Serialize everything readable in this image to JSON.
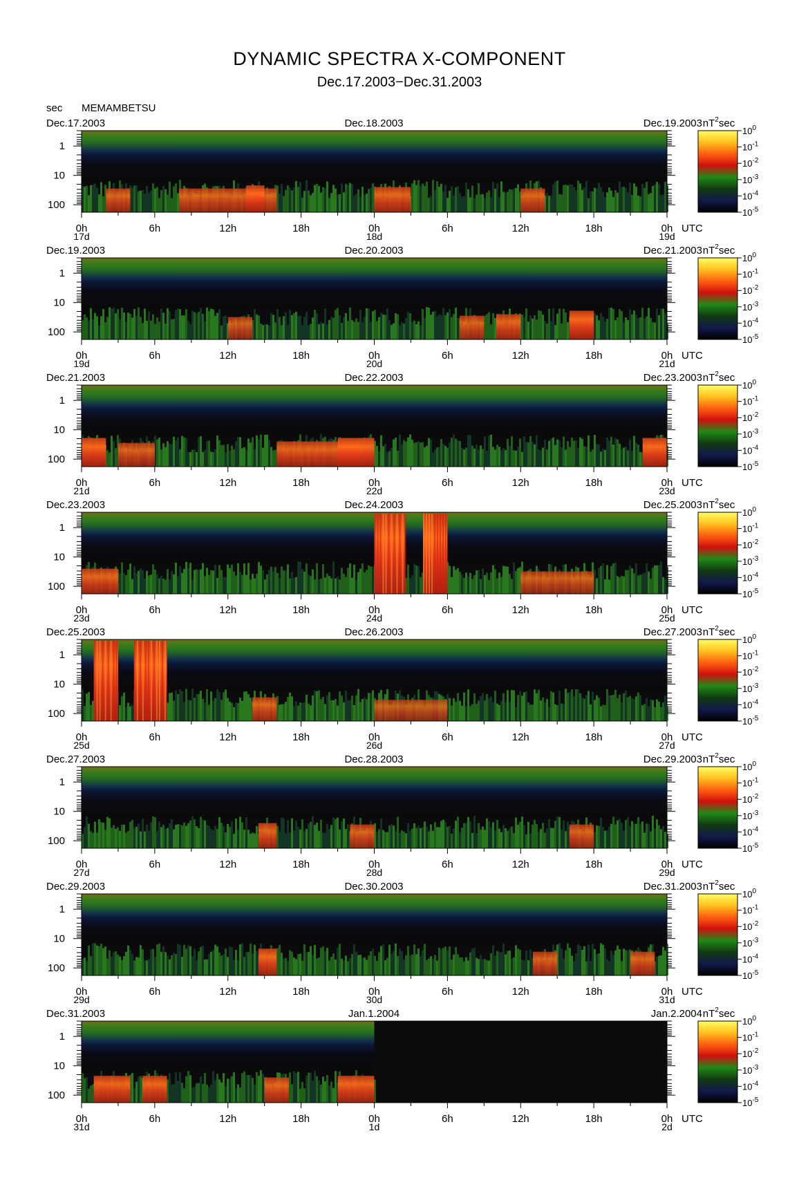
{
  "title": "DYNAMIC SPECTRA X-COMPONENT",
  "subtitle": "Dec.17.2003−Dec.31.2003",
  "y_unit_label": "sec",
  "station": "MEMAMBETSU",
  "colorbar_unit": "nT",
  "colorbar_unit_exp": "2",
  "colorbar_unit_tail": "sec",
  "utc_label": "UTC",
  "colors": {
    "background_dark": "#0b0b0b",
    "band_green": "#2f8a1e",
    "band_red": "#e0401a",
    "band_navy": "#121a5a"
  },
  "chart_data": {
    "type": "heatmap",
    "ylabel": "sec",
    "yticks": [
      "1",
      "10",
      "100"
    ],
    "ylim_sec": [
      0.3,
      180
    ],
    "xticks": [
      "0h",
      "6h",
      "12h",
      "18h",
      "0h",
      "6h",
      "12h",
      "18h",
      "0h"
    ],
    "x_hours_per_panel": 48,
    "colorbar": {
      "label": "nT²sec",
      "exponents": [
        "0",
        "-1",
        "-2",
        "-3",
        "-4",
        "-5"
      ],
      "base": "10",
      "stops": [
        "#ffff60",
        "#ffc020",
        "#ff6010",
        "#d01010",
        "#208a18",
        "#103a10",
        "#101a4a",
        "#000000"
      ]
    },
    "panels": [
      {
        "left_date": "Dec.17.2003",
        "mid_date": "Dec.18.2003",
        "right_date": "Dec.19.2003",
        "day_start": "17d",
        "day_mid": "18d",
        "day_end": "19d",
        "data_until_hour": 48,
        "bursts": [
          [
            2,
            4,
            0.6
          ],
          [
            8,
            16,
            0.6
          ],
          [
            13.5,
            15,
            0.8
          ],
          [
            24,
            27,
            0.7
          ],
          [
            36,
            38,
            0.6
          ]
        ]
      },
      {
        "left_date": "Dec.19.2003",
        "mid_date": "Dec.20.2003",
        "right_date": "Dec.21.2003",
        "day_start": "19d",
        "day_mid": "20d",
        "day_end": "21d",
        "data_until_hour": 48,
        "bursts": [
          [
            12,
            14,
            0.5
          ],
          [
            31,
            33,
            0.6
          ],
          [
            34,
            36,
            0.7
          ],
          [
            40,
            42,
            0.9
          ]
        ]
      },
      {
        "left_date": "Dec.21.2003",
        "mid_date": "Dec.22.2003",
        "right_date": "Dec.23.2003",
        "day_start": "21d",
        "day_mid": "22d",
        "day_end": "23d",
        "data_until_hour": 48,
        "bursts": [
          [
            0,
            2,
            0.9
          ],
          [
            3,
            6,
            0.6
          ],
          [
            16,
            23,
            0.7
          ],
          [
            21,
            24,
            0.9
          ],
          [
            46,
            48,
            0.9
          ]
        ]
      },
      {
        "left_date": "Dec.23.2003",
        "mid_date": "Dec.24.2003",
        "right_date": "Dec.25.2003",
        "day_start": "23d",
        "day_mid": "24d",
        "day_end": "25d",
        "data_until_hour": 48,
        "bursts": [
          [
            0,
            3,
            0.7
          ],
          [
            24,
            26.5,
            1.0
          ],
          [
            28,
            30,
            1.0
          ],
          [
            36,
            42,
            0.5
          ]
        ]
      },
      {
        "left_date": "Dec.25.2003",
        "mid_date": "Dec.26.2003",
        "right_date": "Dec.27.2003",
        "day_start": "25d",
        "day_mid": "26d",
        "day_end": "27d",
        "data_until_hour": 48,
        "bursts": [
          [
            1,
            3,
            1.0
          ],
          [
            4.3,
            7,
            1.0
          ],
          [
            14,
            16,
            0.6
          ],
          [
            24,
            30,
            0.4
          ]
        ]
      },
      {
        "left_date": "Dec.27.2003",
        "mid_date": "Dec.28.2003",
        "right_date": "Dec.29.2003",
        "day_start": "27d",
        "day_mid": "28d",
        "day_end": "29d",
        "data_until_hour": 48,
        "bursts": [
          [
            14.5,
            16,
            0.7
          ],
          [
            22,
            24,
            0.6
          ],
          [
            40,
            42,
            0.6
          ]
        ]
      },
      {
        "left_date": "Dec.29.2003",
        "mid_date": "Dec.30.2003",
        "right_date": "Dec.31.2003",
        "day_start": "29d",
        "day_mid": "30d",
        "day_end": "31d",
        "data_until_hour": 48,
        "bursts": [
          [
            14.5,
            16,
            0.8
          ],
          [
            37,
            39,
            0.6
          ],
          [
            45,
            47,
            0.6
          ]
        ]
      },
      {
        "left_date": "Dec.31.2003",
        "mid_date": "Jan.1.2004",
        "right_date": "Jan.2.2004",
        "day_start": "31d",
        "day_mid": "1d",
        "day_end": "2d",
        "data_until_hour": 24,
        "bursts": [
          [
            1,
            4,
            0.8
          ],
          [
            5,
            7,
            0.8
          ],
          [
            15,
            17,
            0.7
          ],
          [
            21,
            24,
            0.8
          ]
        ]
      }
    ]
  }
}
